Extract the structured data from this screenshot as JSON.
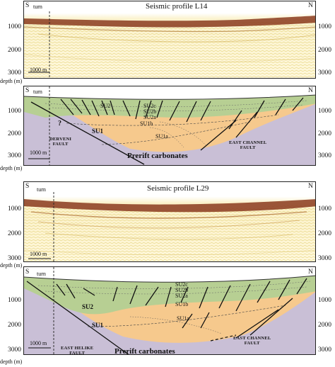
{
  "profiles": [
    {
      "title": "Seismic profile L14",
      "south": "S",
      "north": "N",
      "turn": "turn",
      "scale": "1000 m",
      "depth_unit": "depth (m)",
      "depths_left": [
        "1000",
        "2000",
        "3000"
      ],
      "depths_right": [
        "1000",
        "2000",
        "3000"
      ]
    },
    {
      "south": "S",
      "north": "N",
      "turn": "turn",
      "scale": "1000 m",
      "depth_unit": "depth (m)",
      "depths_left": [
        "1000",
        "2000",
        "3000"
      ],
      "depths_right": [
        "1000",
        "2000",
        "3000"
      ],
      "labels": {
        "su2_a": "SU2",
        "su2c": "SU2c",
        "su2b": "SU2b",
        "su2a": "SU2a",
        "su1": "SU1",
        "su1b": "SU1b",
        "su1a": "SU1a",
        "q": "?",
        "prerift": "Prerift carbonates",
        "fault_left": [
          "DERVENI",
          "FAULT"
        ],
        "fault_right": [
          "EAST CHANNEL",
          "FAULT"
        ]
      }
    },
    {
      "title": "Seismic profile L29",
      "south": "S",
      "north": "N",
      "turn": "turn",
      "scale": "1000 m",
      "depth_unit": "depth (m)",
      "depths_left": [
        "1000",
        "2000",
        "3000"
      ],
      "depths_right": [
        "1000",
        "2000",
        "3000"
      ]
    },
    {
      "south": "S",
      "north": "N",
      "turn": "turn",
      "scale": "1000 m",
      "depth_unit": "depth (m)",
      "depths_left": [
        "1000",
        "2000",
        "3000"
      ],
      "depths_right": [
        "1000",
        "2000",
        "3000"
      ],
      "labels": {
        "su2": "SU2",
        "su2c": "SU2c",
        "su2b": "SU2b",
        "su2a": "SU2a",
        "su1": "SU1",
        "su1b": "SU1b",
        "su1a": "SU1a",
        "prerift": "Prerift carbonates",
        "fault_left": [
          "EAST HELIKE",
          "FAULT"
        ],
        "fault_right": [
          "EAST CHANNEL",
          "FAULT"
        ]
      }
    }
  ],
  "colors": {
    "seismic_bg": "#f6efc2",
    "seismic_dark": "#7a2a16",
    "su2": "#b7cf93",
    "su1": "#f6c98d",
    "prerift": "#c9bfd6",
    "water": "#ffffff"
  }
}
